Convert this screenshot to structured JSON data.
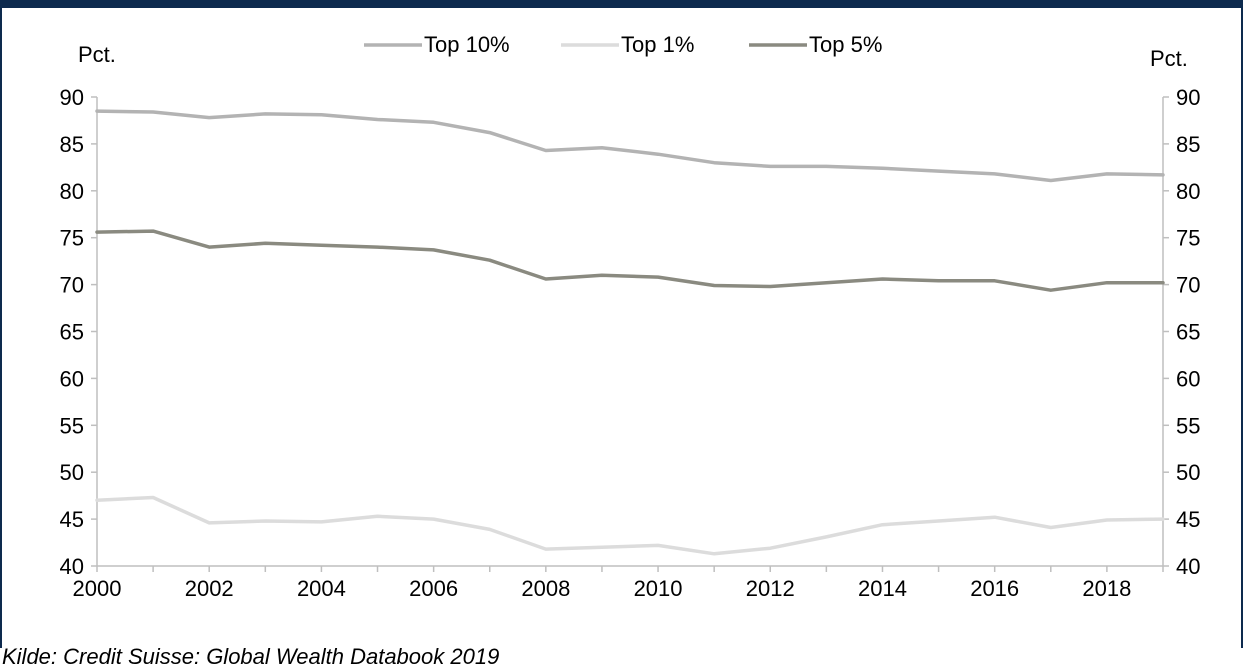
{
  "header": {
    "title": ""
  },
  "source": "Kilde: Credit Suisse: Global Wealth Databook 2019",
  "chart_data": {
    "type": "line",
    "ylabel_left": "Pct.",
    "ylabel_right": "Pct.",
    "ylim": [
      40,
      90
    ],
    "yticks": [
      40,
      45,
      50,
      55,
      60,
      65,
      70,
      75,
      80,
      85,
      90
    ],
    "xlim": [
      2000,
      2019
    ],
    "xticks": [
      2000,
      2002,
      2004,
      2006,
      2008,
      2010,
      2012,
      2014,
      2016,
      2018
    ],
    "x": [
      2000,
      2001,
      2002,
      2003,
      2004,
      2005,
      2006,
      2007,
      2008,
      2009,
      2010,
      2011,
      2012,
      2013,
      2014,
      2015,
      2016,
      2017,
      2018,
      2019
    ],
    "legend_position": "top",
    "grid": false,
    "series": [
      {
        "name": "Top 10%",
        "color": "#b3b3b3",
        "values": [
          88.5,
          88.4,
          87.8,
          88.2,
          88.1,
          87.6,
          87.3,
          86.2,
          84.3,
          84.6,
          83.9,
          83.0,
          82.6,
          82.6,
          82.4,
          82.1,
          81.8,
          81.1,
          81.8,
          81.7
        ]
      },
      {
        "name": "Top 1%",
        "color": "#dcdcdc",
        "values": [
          47.0,
          47.3,
          44.6,
          44.8,
          44.7,
          45.3,
          45.0,
          43.9,
          41.8,
          42.0,
          42.2,
          41.3,
          41.9,
          43.1,
          44.4,
          44.8,
          45.2,
          44.1,
          44.9,
          45.0
        ]
      },
      {
        "name": "Top 5%",
        "color": "#8a8a80",
        "values": [
          75.6,
          75.7,
          74.0,
          74.4,
          74.2,
          74.0,
          73.7,
          72.6,
          70.6,
          71.0,
          70.8,
          69.9,
          69.8,
          70.2,
          70.6,
          70.4,
          70.4,
          69.4,
          70.2,
          70.2
        ]
      }
    ]
  }
}
